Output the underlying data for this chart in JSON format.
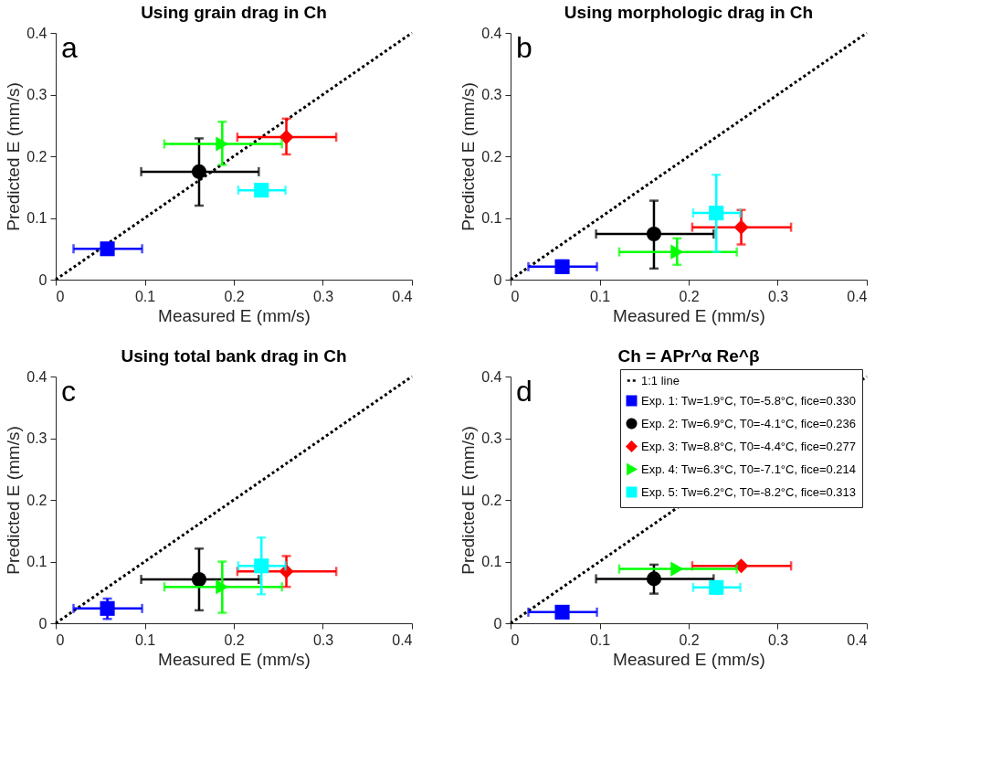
{
  "chart_data": [
    {
      "type": "scatter",
      "title": "Using grain drag in Ch",
      "xlabel": "Measured  E (mm/s)",
      "ylabel": "Predicted  E (mm/s)",
      "annotations": [
        "a"
      ],
      "xlim": [
        0,
        0.4
      ],
      "ylim": [
        0,
        0.4
      ],
      "xticks": [
        0,
        0.1,
        0.2,
        0.3,
        0.4
      ],
      "yticks": [
        0,
        0.1,
        0.2,
        0.3,
        0.4
      ],
      "grid": false,
      "legend": false,
      "series": [
        {
          "type": "line",
          "color": "#000000",
          "line_style": "dotted",
          "marker": "none",
          "x": [
            0,
            0.4
          ],
          "values": [
            0,
            0.4
          ]
        },
        {
          "color": "#0000ff",
          "marker": "square",
          "x": [
            0.058
          ],
          "values": [
            0.05
          ],
          "xerrors": [
            [
              0.02,
              0.097
            ]
          ],
          "errors": [
            null
          ]
        },
        {
          "color": "#000000",
          "marker": "circle",
          "x": [
            0.161
          ],
          "values": [
            0.175
          ],
          "xerrors": [
            [
              0.096,
              0.228
            ]
          ],
          "errors": [
            [
              0.12,
              0.229
            ]
          ]
        },
        {
          "color": "#ff0000",
          "marker": "diamond",
          "x": [
            0.259
          ],
          "values": [
            0.231
          ],
          "xerrors": [
            [
              0.204,
              0.315
            ]
          ],
          "errors": [
            [
              0.203,
              0.261
            ]
          ]
        },
        {
          "color": "#00ff00",
          "marker": "triangle",
          "x": [
            0.187
          ],
          "values": [
            0.22
          ],
          "xerrors": [
            [
              0.122,
              0.254
            ]
          ],
          "errors": [
            [
              0.186,
              0.256
            ]
          ]
        },
        {
          "color": "#00ffff",
          "marker": "square",
          "x": [
            0.231
          ],
          "values": [
            0.145
          ],
          "xerrors": [
            [
              0.205,
              0.258
            ]
          ],
          "errors": [
            null
          ]
        }
      ]
    },
    {
      "type": "scatter",
      "title": "Using morphologic drag in Ch",
      "xlabel": "Measured  E (mm/s)",
      "ylabel": "Predicted  E (mm/s)",
      "annotations": [
        "b"
      ],
      "xlim": [
        0,
        0.4
      ],
      "ylim": [
        0,
        0.4
      ],
      "xticks": [
        0,
        0.1,
        0.2,
        0.3,
        0.4
      ],
      "yticks": [
        0,
        0.1,
        0.2,
        0.3,
        0.4
      ],
      "grid": false,
      "legend": false,
      "series": [
        {
          "type": "line",
          "color": "#000000",
          "line_style": "dotted",
          "marker": "none",
          "x": [
            0,
            0.4
          ],
          "values": [
            0,
            0.4
          ]
        },
        {
          "color": "#0000ff",
          "marker": "square",
          "x": [
            0.058
          ],
          "values": [
            0.021
          ],
          "xerrors": [
            [
              0.02,
              0.097
            ]
          ],
          "errors": [
            [
              0.011,
              0.031
            ]
          ]
        },
        {
          "color": "#000000",
          "marker": "circle",
          "x": [
            0.161
          ],
          "values": [
            0.074
          ],
          "xerrors": [
            [
              0.096,
              0.228
            ]
          ],
          "errors": [
            [
              0.018,
              0.128
            ]
          ]
        },
        {
          "color": "#ff0000",
          "marker": "diamond",
          "x": [
            0.259
          ],
          "values": [
            0.085
          ],
          "xerrors": [
            [
              0.204,
              0.315
            ]
          ],
          "errors": [
            [
              0.057,
              0.113
            ]
          ]
        },
        {
          "color": "#00ff00",
          "marker": "triangle",
          "x": [
            0.187
          ],
          "values": [
            0.045
          ],
          "xerrors": [
            [
              0.122,
              0.254
            ]
          ],
          "errors": [
            [
              0.024,
              0.067
            ]
          ]
        },
        {
          "color": "#00ffff",
          "marker": "square",
          "x": [
            0.231
          ],
          "values": [
            0.108
          ],
          "xerrors": [
            [
              0.205,
              0.258
            ]
          ],
          "errors": [
            [
              0.045,
              0.17
            ]
          ]
        }
      ]
    },
    {
      "type": "scatter",
      "title": "Using total bank drag in Ch",
      "xlabel": "Measured  E (mm/s)",
      "ylabel": "Predicted  E (mm/s)",
      "annotations": [
        "c"
      ],
      "xlim": [
        0,
        0.4
      ],
      "ylim": [
        0,
        0.4
      ],
      "xticks": [
        0,
        0.1,
        0.2,
        0.3,
        0.4
      ],
      "yticks": [
        0,
        0.1,
        0.2,
        0.3,
        0.4
      ],
      "grid": false,
      "legend": false,
      "series": [
        {
          "type": "line",
          "color": "#000000",
          "line_style": "dotted",
          "marker": "none",
          "x": [
            0,
            0.4
          ],
          "values": [
            0,
            0.4
          ]
        },
        {
          "color": "#0000ff",
          "marker": "square",
          "x": [
            0.058
          ],
          "values": [
            0.024
          ],
          "xerrors": [
            [
              0.02,
              0.097
            ]
          ],
          "errors": [
            [
              0.007,
              0.04
            ]
          ]
        },
        {
          "color": "#000000",
          "marker": "circle",
          "x": [
            0.161
          ],
          "values": [
            0.071
          ],
          "xerrors": [
            [
              0.096,
              0.228
            ]
          ],
          "errors": [
            [
              0.021,
              0.121
            ]
          ]
        },
        {
          "color": "#ff0000",
          "marker": "diamond",
          "x": [
            0.259
          ],
          "values": [
            0.084
          ],
          "xerrors": [
            [
              0.204,
              0.315
            ]
          ],
          "errors": [
            [
              0.059,
              0.109
            ]
          ]
        },
        {
          "color": "#00ff00",
          "marker": "triangle",
          "x": [
            0.187
          ],
          "values": [
            0.059
          ],
          "xerrors": [
            [
              0.122,
              0.254
            ]
          ],
          "errors": [
            [
              0.017,
              0.1
            ]
          ]
        },
        {
          "color": "#00ffff",
          "marker": "square",
          "x": [
            0.231
          ],
          "values": [
            0.093
          ],
          "xerrors": [
            [
              0.205,
              0.258
            ]
          ],
          "errors": [
            [
              0.047,
              0.139
            ]
          ]
        }
      ]
    },
    {
      "type": "scatter",
      "title": "Ch = APr^α Re^β",
      "xlabel": "Measured  E (mm/s)",
      "ylabel": "Predicted  E (mm/s)",
      "annotations": [
        "d"
      ],
      "xlim": [
        0,
        0.4
      ],
      "ylim": [
        0,
        0.4
      ],
      "xticks": [
        0,
        0.1,
        0.2,
        0.3,
        0.4
      ],
      "yticks": [
        0,
        0.1,
        0.2,
        0.3,
        0.4
      ],
      "grid": false,
      "legend": "top right",
      "series": [
        {
          "type": "line",
          "name": "1:1 line",
          "color": "#000000",
          "line_style": "dotted",
          "marker": "none",
          "x": [
            0,
            0.4
          ],
          "values": [
            0,
            0.4
          ]
        },
        {
          "name": "Exp. 1: Tw=1.9°C, T0=-5.8°C, fice=0.330",
          "color": "#0000ff",
          "marker": "square",
          "x": [
            0.058
          ],
          "values": [
            0.018
          ],
          "xerrors": [
            [
              0.02,
              0.097
            ]
          ],
          "errors": [
            null
          ]
        },
        {
          "name": "Exp. 2: Tw=6.9°C, T0=-4.1°C, fice=0.236",
          "color": "#000000",
          "marker": "circle",
          "x": [
            0.161
          ],
          "values": [
            0.072
          ],
          "xerrors": [
            [
              0.096,
              0.228
            ]
          ],
          "errors": [
            [
              0.048,
              0.095
            ]
          ]
        },
        {
          "name": "Exp. 3: Tw=8.8°C, T0=-4.4°C, fice=0.277",
          "color": "#ff0000",
          "marker": "diamond",
          "x": [
            0.259
          ],
          "values": [
            0.093
          ],
          "xerrors": [
            [
              0.204,
              0.315
            ]
          ],
          "errors": [
            null
          ]
        },
        {
          "name": "Exp. 4: Tw=6.3°C, T0=-7.1°C, fice=0.214",
          "color": "#00ff00",
          "marker": "triangle",
          "x": [
            0.187
          ],
          "values": [
            0.088
          ],
          "xerrors": [
            [
              0.122,
              0.254
            ]
          ],
          "errors": [
            null
          ]
        },
        {
          "name": "Exp. 5: Tw=6.2°C, T0=-8.2°C, fice=0.313",
          "color": "#00ffff",
          "marker": "square",
          "x": [
            0.231
          ],
          "values": [
            0.058
          ],
          "xerrors": [
            [
              0.205,
              0.258
            ]
          ],
          "errors": [
            null
          ]
        }
      ]
    }
  ]
}
